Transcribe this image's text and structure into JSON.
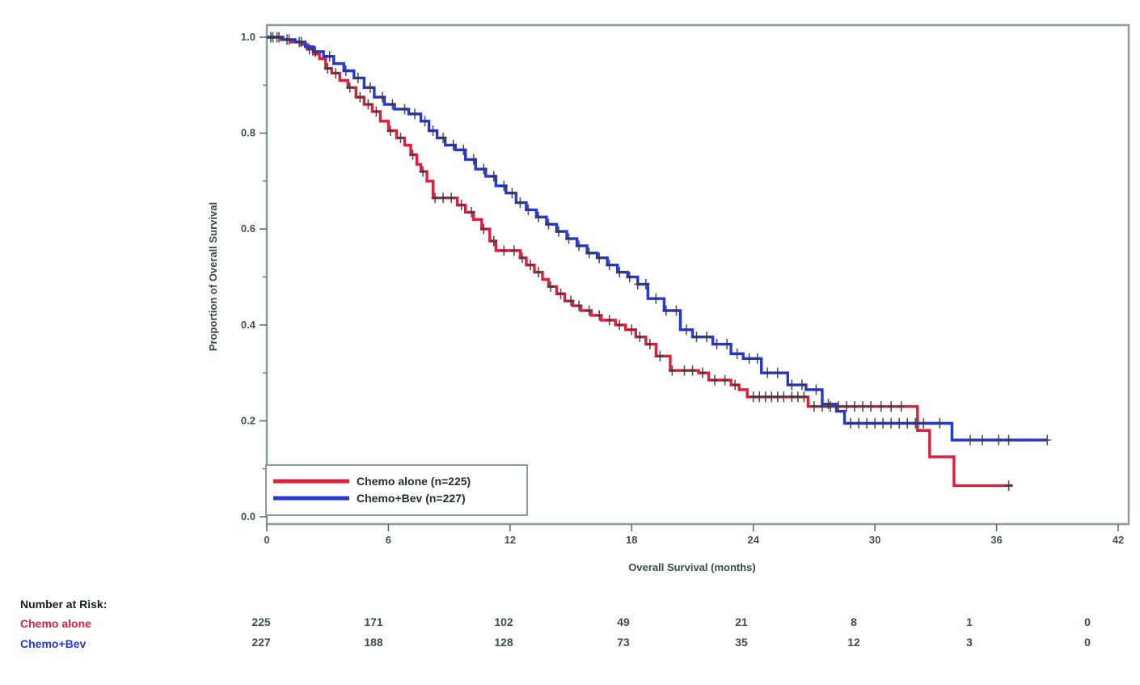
{
  "chart_data": {
    "type": "line",
    "subtype": "kaplan-meier-step",
    "title": "",
    "xlabel": "Overall Survival (months)",
    "ylabel": "Proportion of Overall Survival",
    "xlim": [
      0,
      42
    ],
    "ylim": [
      0.0,
      1.0
    ],
    "x_ticks": [
      0,
      6,
      12,
      18,
      24,
      30,
      36,
      42
    ],
    "y_major_ticks": [
      0.0,
      0.2,
      0.4,
      0.6,
      0.8,
      1.0
    ],
    "y_minor_ticks": [
      0.1,
      0.3,
      0.5,
      0.7,
      0.9
    ],
    "grid": false,
    "frame": true,
    "frame_color": "#8c9c98",
    "censor_mark_color": "#3a3a3a",
    "legend": {
      "position": "inside-bottom-left"
    },
    "series": [
      {
        "name": "Chemo alone (n=225)",
        "color": "#e11d3c",
        "end_time": 36.8,
        "steps": [
          [
            0,
            1.0
          ],
          [
            0.7,
            0.995
          ],
          [
            1.2,
            0.99
          ],
          [
            1.7,
            0.985
          ],
          [
            2.0,
            0.975
          ],
          [
            2.3,
            0.965
          ],
          [
            2.6,
            0.955
          ],
          [
            2.9,
            0.935
          ],
          [
            3.2,
            0.925
          ],
          [
            3.6,
            0.91
          ],
          [
            4.0,
            0.895
          ],
          [
            4.4,
            0.875
          ],
          [
            4.8,
            0.86
          ],
          [
            5.2,
            0.845
          ],
          [
            5.6,
            0.825
          ],
          [
            6.0,
            0.805
          ],
          [
            6.4,
            0.79
          ],
          [
            6.8,
            0.775
          ],
          [
            7.1,
            0.755
          ],
          [
            7.4,
            0.735
          ],
          [
            7.6,
            0.72
          ],
          [
            7.9,
            0.7
          ],
          [
            8.2,
            0.665
          ],
          [
            9.4,
            0.65
          ],
          [
            9.8,
            0.635
          ],
          [
            10.2,
            0.62
          ],
          [
            10.6,
            0.6
          ],
          [
            11.0,
            0.575
          ],
          [
            11.3,
            0.555
          ],
          [
            12.5,
            0.54
          ],
          [
            12.8,
            0.525
          ],
          [
            13.2,
            0.51
          ],
          [
            13.6,
            0.495
          ],
          [
            13.9,
            0.48
          ],
          [
            14.3,
            0.465
          ],
          [
            14.7,
            0.45
          ],
          [
            15.1,
            0.44
          ],
          [
            15.5,
            0.43
          ],
          [
            16.0,
            0.42
          ],
          [
            16.5,
            0.41
          ],
          [
            17.2,
            0.4
          ],
          [
            17.7,
            0.39
          ],
          [
            18.2,
            0.375
          ],
          [
            18.7,
            0.36
          ],
          [
            19.2,
            0.335
          ],
          [
            19.9,
            0.305
          ],
          [
            21.3,
            0.3
          ],
          [
            21.8,
            0.285
          ],
          [
            22.9,
            0.275
          ],
          [
            23.3,
            0.265
          ],
          [
            23.7,
            0.25
          ],
          [
            26.7,
            0.23
          ],
          [
            32.1,
            0.18
          ],
          [
            32.7,
            0.125
          ],
          [
            33.9,
            0.065
          ]
        ],
        "censor_times": [
          0.3,
          0.5,
          1.0,
          1.6,
          2.1,
          3.0,
          3.4,
          4.1,
          4.6,
          5.0,
          5.4,
          6.1,
          6.6,
          7.2,
          7.7,
          8.3,
          8.7,
          9.1,
          9.6,
          10.1,
          10.7,
          11.2,
          11.7,
          12.2,
          12.6,
          13.0,
          13.4,
          14.0,
          14.5,
          15.0,
          15.4,
          15.9,
          16.4,
          16.9,
          17.4,
          18.0,
          18.4,
          18.9,
          19.4,
          20.0,
          20.6,
          21.0,
          21.5,
          22.1,
          22.6,
          23.1,
          24.0,
          24.3,
          24.6,
          24.9,
          25.2,
          25.5,
          25.9,
          26.2,
          26.5,
          27.0,
          27.4,
          27.8,
          28.2,
          28.6,
          29.0,
          29.4,
          29.8,
          30.3,
          30.8,
          31.3,
          36.6
        ]
      },
      {
        "name": "Chemo+Bev (n=227)",
        "color": "#2538d5",
        "end_time": 38.5,
        "steps": [
          [
            0,
            1.0
          ],
          [
            0.8,
            0.995
          ],
          [
            1.4,
            0.99
          ],
          [
            1.9,
            0.98
          ],
          [
            2.3,
            0.97
          ],
          [
            2.8,
            0.96
          ],
          [
            3.3,
            0.945
          ],
          [
            3.8,
            0.93
          ],
          [
            4.3,
            0.915
          ],
          [
            4.8,
            0.895
          ],
          [
            5.3,
            0.875
          ],
          [
            5.8,
            0.86
          ],
          [
            6.3,
            0.85
          ],
          [
            7.0,
            0.84
          ],
          [
            7.6,
            0.825
          ],
          [
            8.0,
            0.805
          ],
          [
            8.4,
            0.79
          ],
          [
            8.8,
            0.775
          ],
          [
            9.3,
            0.765
          ],
          [
            9.8,
            0.745
          ],
          [
            10.3,
            0.725
          ],
          [
            10.8,
            0.71
          ],
          [
            11.3,
            0.69
          ],
          [
            11.8,
            0.675
          ],
          [
            12.3,
            0.655
          ],
          [
            12.8,
            0.64
          ],
          [
            13.3,
            0.625
          ],
          [
            13.8,
            0.61
          ],
          [
            14.3,
            0.595
          ],
          [
            14.8,
            0.58
          ],
          [
            15.3,
            0.565
          ],
          [
            15.8,
            0.55
          ],
          [
            16.3,
            0.54
          ],
          [
            16.8,
            0.525
          ],
          [
            17.3,
            0.51
          ],
          [
            17.8,
            0.5
          ],
          [
            18.3,
            0.485
          ],
          [
            18.8,
            0.455
          ],
          [
            19.6,
            0.43
          ],
          [
            20.4,
            0.39
          ],
          [
            21.0,
            0.375
          ],
          [
            22.0,
            0.36
          ],
          [
            22.9,
            0.34
          ],
          [
            23.5,
            0.33
          ],
          [
            24.4,
            0.3
          ],
          [
            25.7,
            0.275
          ],
          [
            26.6,
            0.265
          ],
          [
            27.4,
            0.235
          ],
          [
            28.1,
            0.22
          ],
          [
            28.5,
            0.195
          ],
          [
            33.8,
            0.16
          ]
        ],
        "censor_times": [
          0.2,
          0.6,
          1.1,
          1.7,
          2.4,
          3.1,
          3.9,
          4.5,
          5.1,
          5.7,
          6.2,
          6.8,
          7.3,
          7.8,
          8.2,
          8.7,
          9.2,
          9.7,
          10.2,
          10.7,
          11.2,
          11.7,
          12.1,
          12.5,
          12.9,
          13.4,
          13.9,
          14.4,
          14.9,
          15.4,
          15.9,
          16.4,
          16.9,
          17.4,
          17.9,
          18.3,
          18.7,
          19.2,
          19.7,
          20.2,
          20.7,
          21.2,
          21.7,
          22.2,
          22.7,
          23.2,
          23.8,
          24.2,
          24.7,
          25.2,
          25.9,
          26.4,
          27.1,
          27.7,
          28.8,
          29.2,
          29.6,
          30.0,
          30.4,
          30.8,
          31.2,
          31.6,
          32.0,
          32.4,
          33.2,
          34.7,
          35.3,
          36.1,
          36.6,
          38.5
        ]
      }
    ],
    "risk_table": {
      "title": "Number at Risk:",
      "times": [
        0,
        6,
        12,
        18,
        24,
        30,
        36,
        42
      ],
      "rows": [
        {
          "label": "Chemo alone",
          "color": "#e11d3c",
          "values": [
            225,
            171,
            102,
            49,
            21,
            8,
            1,
            0
          ]
        },
        {
          "label": "Chemo+Bev",
          "color": "#2538d5",
          "values": [
            227,
            188,
            128,
            73,
            35,
            12,
            3,
            0
          ]
        }
      ]
    }
  }
}
